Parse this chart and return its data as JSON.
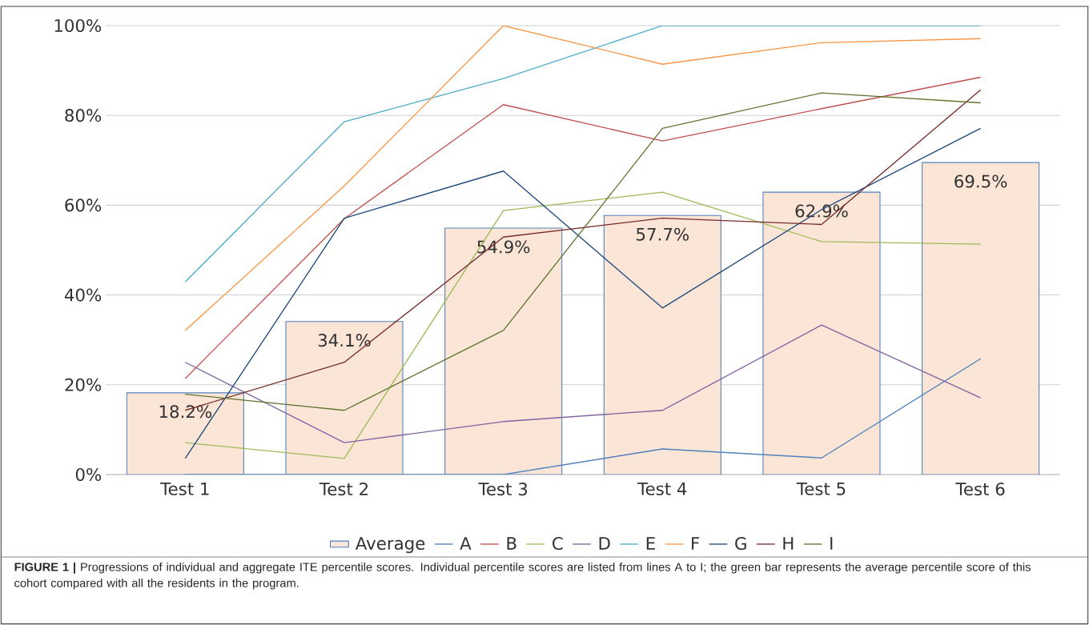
{
  "chart_data": {
    "type": "bar",
    "categories": [
      "Test 1",
      "Test 2",
      "Test 3",
      "Test 4",
      "Test 5",
      "Test 6"
    ],
    "series": [
      {
        "name": "Average",
        "color": "#fbe5d6",
        "values": [
          18.2,
          34.1,
          54.9,
          57.7,
          62.9,
          69.5
        ],
        "value_labels": [
          "18.2%",
          "34.1%",
          "54.9%",
          "57.7%",
          "62.9%",
          "69.5%"
        ]
      },
      {
        "name": "A",
        "type": "line",
        "color": "#4f81bd",
        "values": [
          0,
          0,
          0,
          5.7,
          3.7,
          25.8
        ]
      },
      {
        "name": "B",
        "type": "line",
        "color": "#c0504d",
        "values": [
          21.4,
          57,
          82.4,
          74.3,
          81.5,
          88.5
        ]
      },
      {
        "name": "C",
        "type": "line",
        "color": "#9bbb59",
        "values": [
          7.1,
          3.6,
          58.8,
          62.9,
          51.9,
          51.3
        ]
      },
      {
        "name": "D",
        "type": "line",
        "color": "#8064a2",
        "values": [
          25,
          7.1,
          11.8,
          14.3,
          33.3,
          17.1
        ]
      },
      {
        "name": "E",
        "type": "line",
        "color": "#4bacc6",
        "values": [
          42.9,
          78.6,
          88.2,
          100,
          100,
          100
        ]
      },
      {
        "name": "F",
        "type": "line",
        "color": "#f79646",
        "values": [
          32.1,
          64.3,
          100,
          91.4,
          96.2,
          97.1
        ]
      },
      {
        "name": "G",
        "type": "line",
        "color": "#1f497d",
        "values": [
          3.6,
          57.1,
          67.6,
          37.1,
          59,
          77.1
        ]
      },
      {
        "name": "H",
        "type": "line",
        "color": "#772c2a",
        "values": [
          14.3,
          25,
          52.9,
          57.1,
          55.7,
          85.7
        ]
      },
      {
        "name": "I",
        "type": "line",
        "color": "#5f7530",
        "values": [
          17.9,
          14.3,
          32.1,
          77.1,
          85,
          82.8
        ]
      }
    ],
    "ylim": [
      0,
      100
    ],
    "yticks": [
      {
        "value": 0,
        "label": "0%"
      },
      {
        "value": 20,
        "label": "20%"
      },
      {
        "value": 40,
        "label": "40%"
      },
      {
        "value": 60,
        "label": "60%"
      },
      {
        "value": 80,
        "label": "80%"
      },
      {
        "value": 100,
        "label": "100%"
      }
    ],
    "grid": "y",
    "legend": "bottom",
    "annotations": [
      "**FIGURE 1 |** Progressions of individual and aggregate ITE percentile scores. Individual percentile scores are listed from lines A to I; the green bar represents the average percentile score of this cohort compared with all the residents in the program."
    ]
  }
}
